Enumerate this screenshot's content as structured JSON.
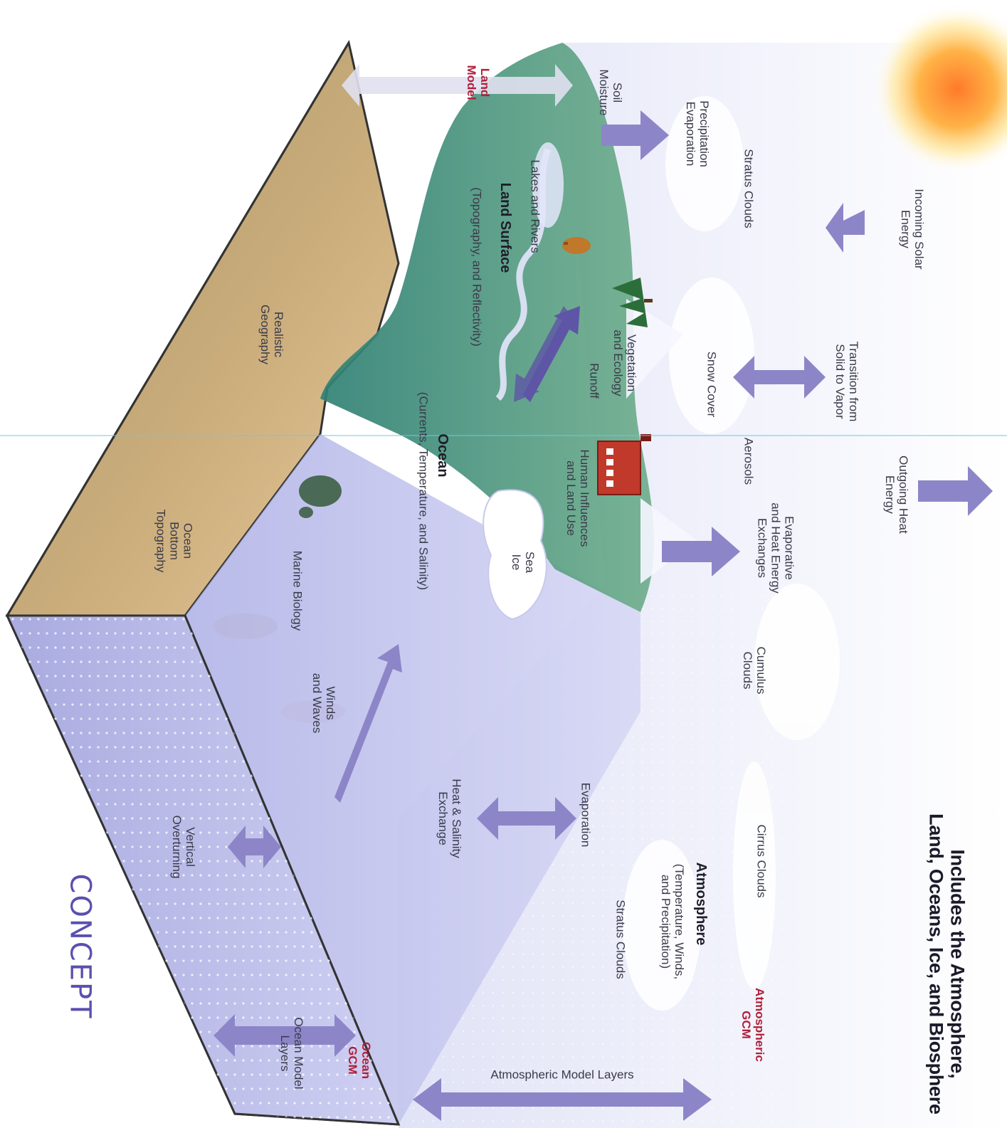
{
  "title": {
    "line1": "Includes the Atmosphere,",
    "line2": "Land, Oceans, Ice, and Biosphere"
  },
  "labels": {
    "incoming_solar": "Incoming Solar\nEnergy",
    "stratus_clouds_left": "Stratus Clouds",
    "precip_evap": "Precipitation\nEvaporation",
    "soil_moisture": "Soil\nMoisture",
    "land_model": "Land\nModel",
    "lakes_rivers": "Lakes and Rivers",
    "land_surface_title": "Land Surface",
    "land_surface_sub": "(Topography, and Reflectivity)",
    "realistic_geography": "Realistic\nGeography",
    "transition": "Transition from\nSolid to Vapor",
    "snow_cover": "Snow Cover",
    "vegetation": "Vegetation\nand Ecology",
    "runoff": "Runoff",
    "outgoing_heat": "Outgoing Heat\nEnergy",
    "aerosols": "Aerosols",
    "evaporative_exchanges": "Evaporative\nand Heat Energy\nExchanges",
    "human_influences": "Human Influences\nand Land Use",
    "ocean_title": "Ocean",
    "ocean_sub": "(Currents, Temperature, and Salinity)",
    "sea_ice": "Sea\nIce",
    "marine_biology": "Marine Biology",
    "ocean_bottom": "Ocean\nBottom\nTopography",
    "cumulus_clouds": "Cumulus\nClouds",
    "winds_waves": "Winds\nand Waves",
    "evaporation": "Evaporation",
    "heat_salinity": "Heat & Salinity\nExchange",
    "vertical_overturning": "Vertical\nOverturning",
    "cirrus_clouds": "Cirrus Clouds",
    "atmosphere_title": "Atmosphere",
    "atmosphere_sub": "(Temperature, Winds,\nand Precipitation)",
    "stratus_clouds_right": "Stratus Clouds",
    "atmospheric_gcm": "Atmospheric\nGCM",
    "atmospheric_model_layers": "Atmospheric Model Layers",
    "ocean_gcm": "Ocean\nGCM",
    "ocean_model_layers": "Ocean Model\nLayers",
    "concept": "CONCEPT"
  },
  "colors": {
    "arrow": "#8c86c8",
    "arrow_dark": "#5e55a6",
    "land": "#3f8f7e",
    "terrain": "#b8a274",
    "ocean": "#c7c8ee",
    "sky": "#eceefa",
    "gcm_red": "#b0203a"
  },
  "icons": [
    "sun-icon",
    "tree-icon",
    "factory-icon",
    "turtle-icon",
    "fish-icon",
    "animal-icon"
  ]
}
